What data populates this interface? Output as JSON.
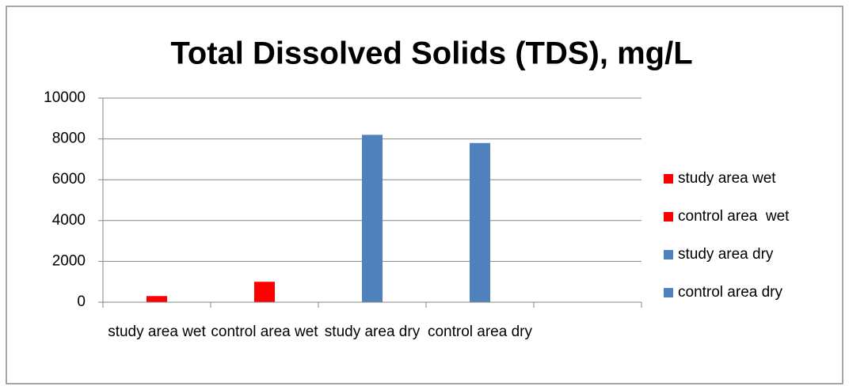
{
  "chart_data": {
    "type": "bar",
    "title": "Total Dissolved Solids (TDS), mg/L",
    "categories": [
      "study area wet",
      "control area wet",
      "study area dry",
      "control area dry",
      null
    ],
    "series": [
      {
        "name": "study area wet",
        "color": "#ff0000",
        "values": [
          300,
          null,
          null,
          null,
          null
        ]
      },
      {
        "name": "control area  wet",
        "color": "#ff0000",
        "values": [
          null,
          1000,
          null,
          null,
          null
        ]
      },
      {
        "name": "study area dry",
        "color": "#4f81bd",
        "values": [
          null,
          null,
          8200,
          null,
          null
        ]
      },
      {
        "name": "control area dry",
        "color": "#4f81bd",
        "values": [
          null,
          null,
          null,
          7800,
          null
        ]
      }
    ],
    "ylim": [
      0,
      10000
    ],
    "yticks": [
      0,
      2000,
      4000,
      6000,
      8000,
      10000
    ],
    "grid": true,
    "legend": "right"
  }
}
